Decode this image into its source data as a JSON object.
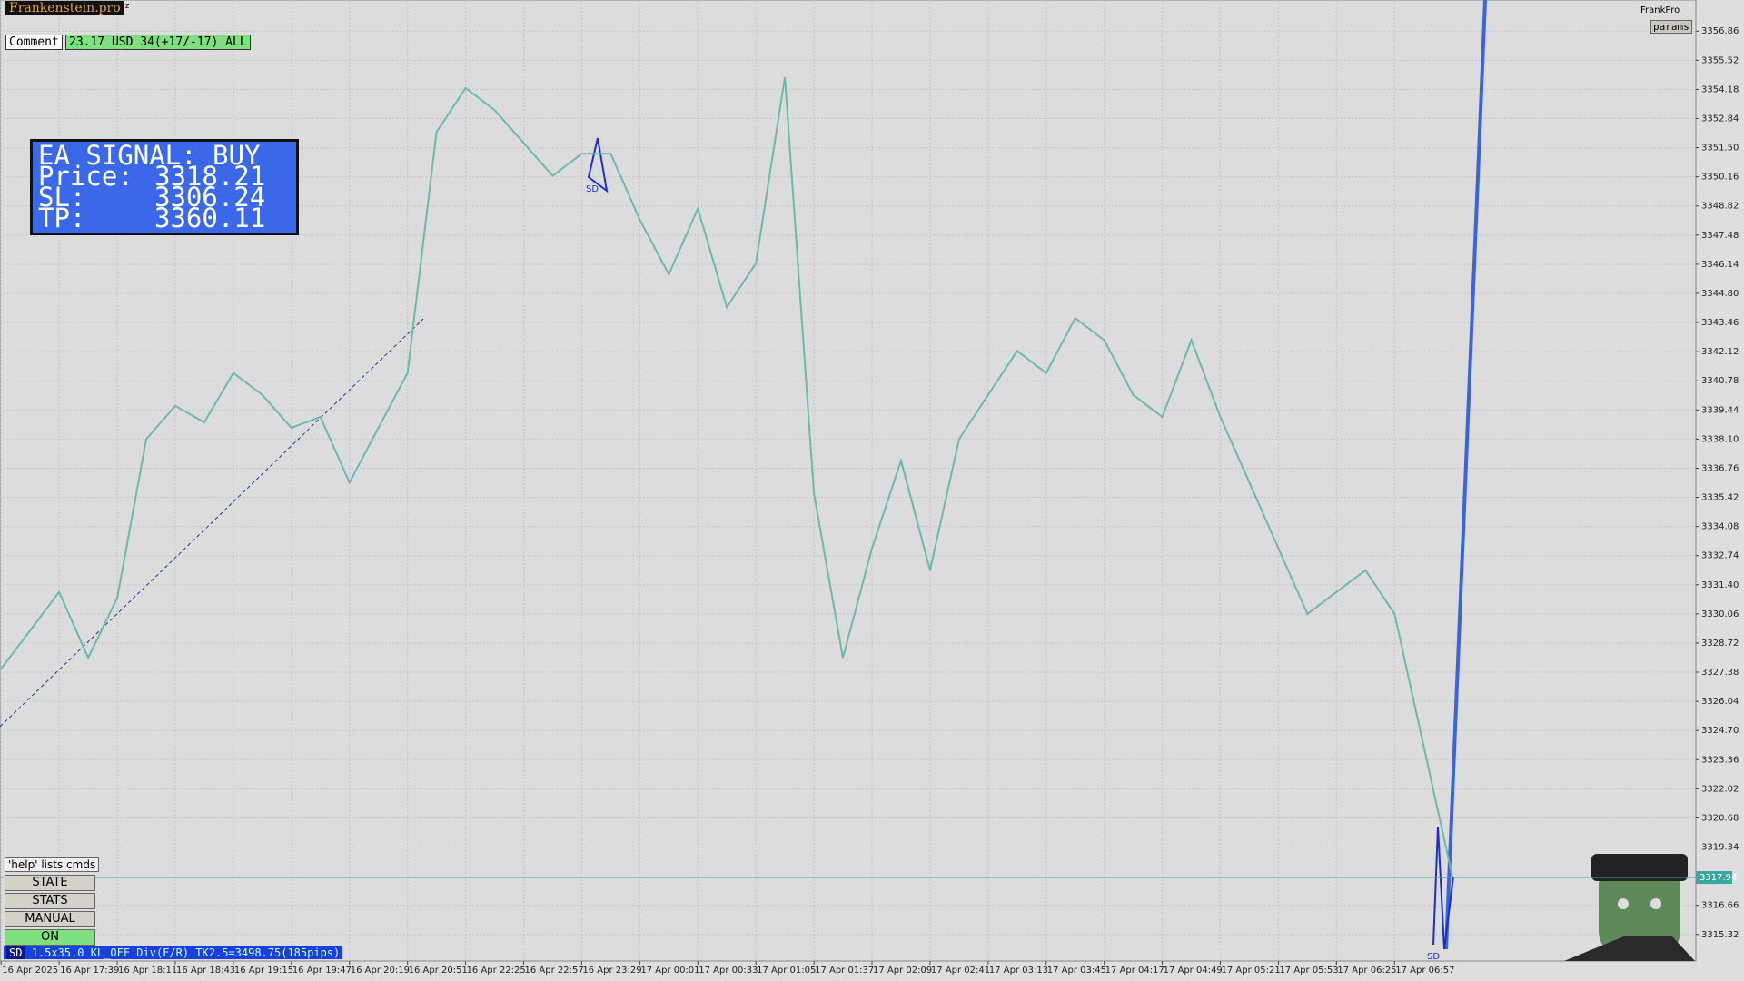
{
  "header": {
    "brand": "Frankenstein.pro",
    "symbol_hint": "Oz",
    "user": "FrankPro",
    "params_button": "params"
  },
  "comment": {
    "label": "Comment",
    "text": "23.17 USD 34(+17/-17) ALL"
  },
  "signal_panel": {
    "title": "EA SIGNAL: BUY",
    "rows": [
      [
        "Price:",
        "3318.21"
      ],
      [
        "SL:",
        "3306.24"
      ],
      [
        "TP:",
        "3360.11"
      ]
    ]
  },
  "controls": {
    "help": "'help' lists cmds",
    "buttons": [
      "STATE",
      "STATS",
      "MANUAL",
      "ON"
    ]
  },
  "status": {
    "tag": "SD",
    "text": "1.5x35.0 KL_OFF Div(F/R) TK2.5=3498.75(185pips)"
  },
  "chart_data": {
    "type": "line",
    "categories": [
      "16 Apr 2025",
      null,
      "16 Apr 17:39",
      null,
      "16 Apr 18:11",
      null,
      "16 Apr 18:43",
      null,
      "16 Apr 19:15",
      null,
      "16 Apr 19:47",
      null,
      "16 Apr 20:19",
      null,
      "16 Apr 20:51",
      null,
      "16 Apr 22:25",
      null,
      "16 Apr 22:57",
      null,
      "16 Apr 23:29",
      null,
      "17 Apr 00:01",
      null,
      "17 Apr 00:33",
      null,
      "17 Apr 01:05",
      null,
      "17 Apr 01:37",
      null,
      "17 Apr 02:09",
      null,
      "17 Apr 02:41",
      null,
      "17 Apr 03:13",
      null,
      "17 Apr 03:45",
      null,
      "17 Apr 04:17",
      null,
      "17 Apr 04:49",
      null,
      "17 Apr 05:21",
      null,
      "17 Apr 05:53",
      null,
      "17 Apr 06:25",
      null,
      "17 Apr 06:57",
      null,
      null
    ],
    "values": [
      3327.54,
      3329.3,
      3331.07,
      3328.04,
      3330.8,
      3338.1,
      3339.63,
      3338.87,
      3341.14,
      3340.13,
      3338.62,
      3339.12,
      3336.1,
      3338.62,
      3341.14,
      3352.22,
      3354.24,
      3353.23,
      3351.72,
      3350.21,
      3351.22,
      3351.22,
      3348.19,
      3345.67,
      3348.7,
      3344.16,
      3346.18,
      3354.74,
      3335.6,
      3328.04,
      3333.08,
      3337.11,
      3332.07,
      3338.1,
      3340.13,
      3342.15,
      3341.14,
      3343.66,
      3342.65,
      3340.13,
      3339.12,
      3342.65,
      3339.12,
      3336.1,
      3333.08,
      3330.06,
      3331.07,
      3332.07,
      3330.06,
      3324.01,
      3317.94
    ],
    "color": "#6cb8ad",
    "ylim": [
      3314.1,
      3358.29
    ],
    "yticks": [
      3356.86,
      3355.52,
      3354.18,
      3352.84,
      {
        "value": 3351.5,
        "label": "3351.50"
      },
      3350.16,
      3348.82,
      3347.48,
      3346.14,
      {
        "value": 3344.8,
        "label": "3344.80"
      },
      3343.46,
      3342.12,
      3340.78,
      3339.44,
      {
        "value": 3338.1,
        "label": "3338.10"
      },
      3336.76,
      3335.42,
      3334.08,
      3332.74,
      {
        "value": 3331.4,
        "label": "3331.40"
      },
      3330.06,
      3328.72,
      3327.38,
      3326.04,
      {
        "value": 3324.7,
        "label": "3324.70"
      },
      3323.36,
      3322.02,
      3320.68,
      3319.34,
      3316.66,
      3315.32
    ],
    "current_price": 3317.94,
    "current_price_color": "#3aa6a0",
    "grid": true,
    "annotations": [
      "SD",
      "SD"
    ]
  }
}
